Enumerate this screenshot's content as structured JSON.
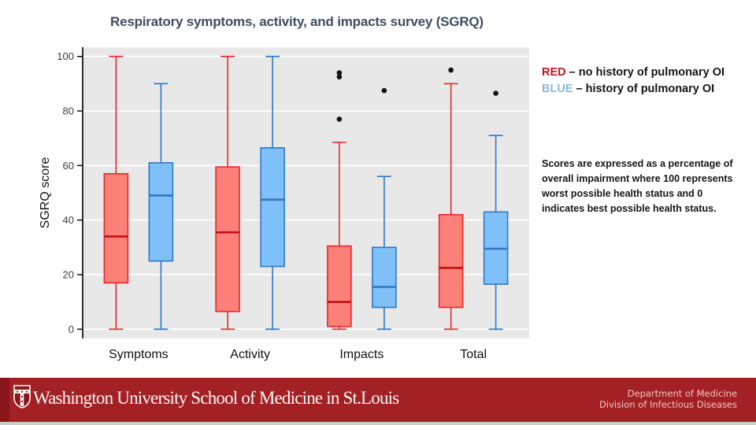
{
  "slide": {
    "title": "Respiratory symptoms, activity, and impacts survey (SGRQ)",
    "title_color": "#3e4d60"
  },
  "legend": {
    "items": [
      {
        "prefix": "RED",
        "separator": " – ",
        "text": "no history of pulmonary OI",
        "color": "#c01820"
      },
      {
        "prefix": "BLUE",
        "separator": " – ",
        "text": "history of pulmonary OI",
        "color": "#8cb8dc"
      }
    ]
  },
  "note": {
    "text": "Scores are expressed as a percentage of overall impairment where 100 represents worst possible health status and 0 indicates best possible health status."
  },
  "chart_data": {
    "type": "boxplot",
    "ylabel": "SGRQ score",
    "ylim": [
      0,
      100
    ],
    "yticks": [
      0,
      20,
      40,
      60,
      80,
      100
    ],
    "grid": "horizontal-white-on-gray",
    "plot_bg": "#e8e8e8",
    "grid_color": "#ffffff",
    "axis_color": "#000000",
    "tick_label_color": "#3c3c3c",
    "outlier_color": "#111111",
    "categories": [
      "Symptoms",
      "Activity",
      "Impacts",
      "Total"
    ],
    "series": [
      {
        "name": "No history of pulmonary OI",
        "fill": "#fb8077",
        "stroke": "#e8272e",
        "median_color": "#c40f14",
        "boxes": [
          {
            "category": "Symptoms",
            "min": 0,
            "q1": 17,
            "median": 34,
            "q3": 57,
            "max": 100,
            "outliers": []
          },
          {
            "category": "Activity",
            "min": 0,
            "q1": 6.5,
            "median": 35.5,
            "q3": 59.5,
            "max": 100,
            "outliers": []
          },
          {
            "category": "Impacts",
            "min": 0,
            "q1": 1,
            "median": 10,
            "q3": 30.5,
            "max": 68.5,
            "outliers": [
              92.5,
              94,
              77
            ]
          },
          {
            "category": "Total",
            "min": 0,
            "q1": 8,
            "median": 22.5,
            "q3": 42,
            "max": 90,
            "outliers": [
              95
            ]
          }
        ]
      },
      {
        "name": "History of pulmonary OI",
        "fill": "#7fc0f8",
        "stroke": "#2e78c6",
        "median_color": "#2e78c6",
        "boxes": [
          {
            "category": "Symptoms",
            "min": 0,
            "q1": 25,
            "median": 49,
            "q3": 61,
            "max": 90,
            "outliers": []
          },
          {
            "category": "Activity",
            "min": 0,
            "q1": 23,
            "median": 47.5,
            "q3": 66.5,
            "max": 100,
            "outliers": []
          },
          {
            "category": "Impacts",
            "min": 0,
            "q1": 8,
            "median": 15.5,
            "q3": 30,
            "max": 56,
            "outliers": [
              87.5
            ]
          },
          {
            "category": "Total",
            "min": 0,
            "q1": 16.5,
            "median": 29.5,
            "q3": 43,
            "max": 71,
            "outliers": [
              86.5
            ]
          }
        ]
      }
    ]
  },
  "footer": {
    "wordmark": "Washington University School of Medicine in St.Louis",
    "dept_line1": "Department of Medicine",
    "dept_line2": "Division of Infectious Diseases",
    "bg_color": "#a32024",
    "dark_edge_color": "#8a161b",
    "dept_text_color": "#eec6c3"
  }
}
